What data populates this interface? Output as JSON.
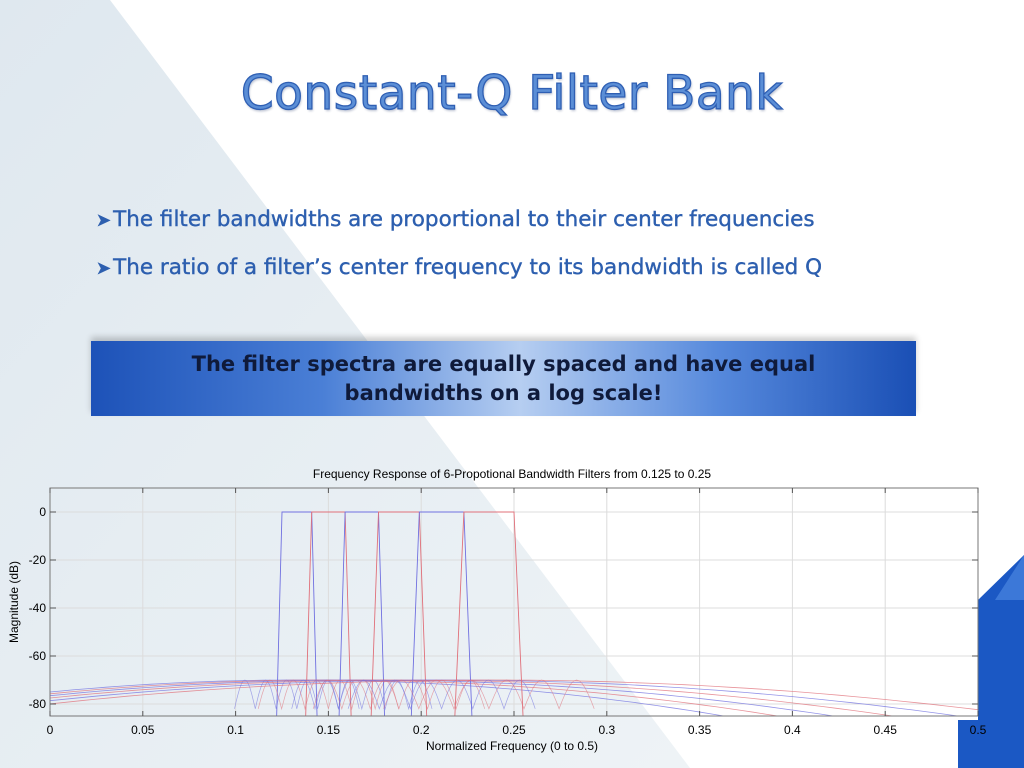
{
  "slide": {
    "title": "Constant-Q Filter Bank",
    "bullets": [
      "The filter bandwidths are proportional to their center frequencies",
      "The ratio of a filter’s center frequency to its bandwidth is called Q"
    ],
    "callout": "The filter spectra are equally spaced and have equal bandwidths on a log scale!"
  },
  "icons": {
    "bullet": "arrow-bullet-icon"
  },
  "colors": {
    "title": "#5b8ed6",
    "bullet_text": "#2d5faf",
    "callout_start": "#1d52b8",
    "callout_mid": "#b6cef1",
    "accent_triangle": "#1b58c4",
    "series_red": "#e0707a",
    "series_blue": "#7070e0"
  },
  "chart_data": {
    "type": "line",
    "title": "Frequency Response of 6-Propotional Bandwidth Filters from 0.125 to 0.25",
    "xlabel": "Normalized Frequency (0 to 0.5)",
    "ylabel": "Magnitude (dB)",
    "xlim": [
      0,
      0.5
    ],
    "ylim": [
      -85,
      10
    ],
    "x_ticks": [
      "0",
      "0.05",
      "0.1",
      "0.15",
      "0.2",
      "0.25",
      "0.3",
      "0.35",
      "0.4",
      "0.45",
      "0.5"
    ],
    "y_ticks": [
      "0",
      "-20",
      "-40",
      "-60",
      "-80"
    ],
    "grid": true,
    "series": [
      {
        "passband": [
          0.125,
          0.141
        ],
        "peak_db": 0,
        "stopband_db": -70,
        "color": "#7070e0"
      },
      {
        "passband": [
          0.141,
          0.159
        ],
        "peak_db": 0,
        "stopband_db": -70,
        "color": "#e0707a"
      },
      {
        "passband": [
          0.159,
          0.177
        ],
        "peak_db": 0,
        "stopband_db": -70,
        "color": "#7070e0"
      },
      {
        "passband": [
          0.177,
          0.199
        ],
        "peak_db": 0,
        "stopband_db": -70,
        "color": "#e0707a"
      },
      {
        "passband": [
          0.199,
          0.223
        ],
        "peak_db": 0,
        "stopband_db": -70,
        "color": "#7070e0"
      },
      {
        "passband": [
          0.223,
          0.25
        ],
        "peak_db": 0,
        "stopband_db": -70,
        "color": "#e0707a"
      }
    ]
  }
}
